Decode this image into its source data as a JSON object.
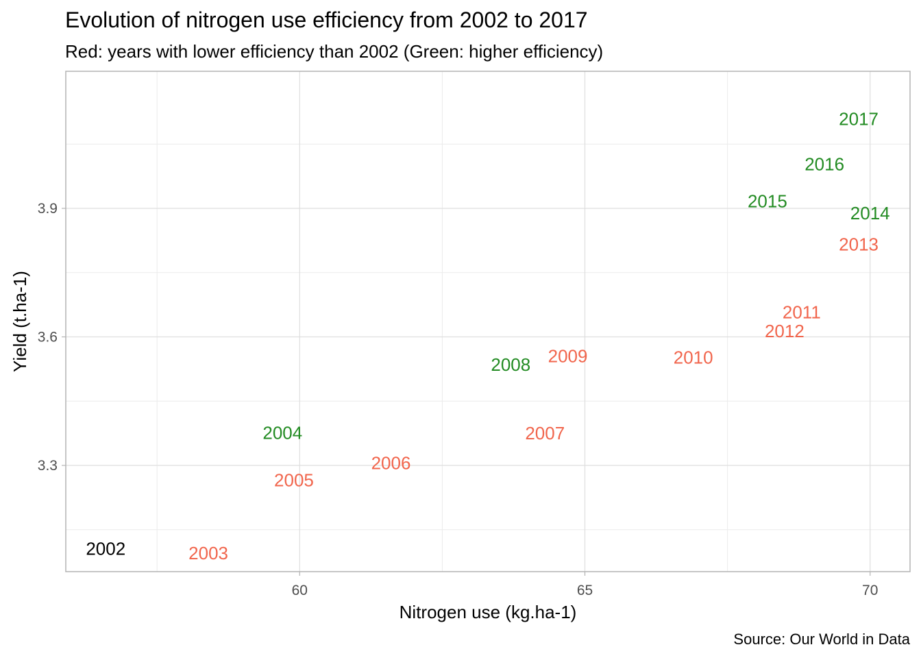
{
  "chart_data": {
    "type": "scatter",
    "title": "Evolution of nitrogen use efficiency from 2002 to 2017",
    "subtitle": "Red: years with lower efficiency than 2002 (Green: higher efficiency)",
    "xlabel": "Nitrogen use (kg.ha-1)",
    "ylabel": "Yield (t.ha-1)",
    "caption": "Source: Our World in Data",
    "xlim": [
      55.9,
      70.7
    ],
    "ylim": [
      3.052,
      4.22
    ],
    "xticks": [
      60,
      65,
      70
    ],
    "xtick_labels": [
      "60",
      "65",
      "70"
    ],
    "yticks": [
      3.3,
      3.6,
      3.9
    ],
    "ytick_labels": [
      "3.3",
      "3.6",
      "3.9"
    ],
    "grid": true,
    "colors": {
      "baseline": "#000000",
      "lower": "#f1654c",
      "higher": "#228b22"
    },
    "points": [
      {
        "label": "2002",
        "x": 56.6,
        "y": 3.106,
        "group": "baseline"
      },
      {
        "label": "2003",
        "x": 58.4,
        "y": 3.095,
        "group": "lower"
      },
      {
        "label": "2004",
        "x": 59.7,
        "y": 3.376,
        "group": "higher"
      },
      {
        "label": "2005",
        "x": 59.9,
        "y": 3.266,
        "group": "lower"
      },
      {
        "label": "2006",
        "x": 61.6,
        "y": 3.306,
        "group": "lower"
      },
      {
        "label": "2007",
        "x": 64.3,
        "y": 3.375,
        "group": "lower"
      },
      {
        "label": "2008",
        "x": 63.7,
        "y": 3.535,
        "group": "higher"
      },
      {
        "label": "2009",
        "x": 64.7,
        "y": 3.555,
        "group": "lower"
      },
      {
        "label": "2010",
        "x": 66.9,
        "y": 3.552,
        "group": "lower"
      },
      {
        "label": "2011",
        "x": 68.8,
        "y": 3.658,
        "group": "lower"
      },
      {
        "label": "2012",
        "x": 68.5,
        "y": 3.614,
        "group": "lower"
      },
      {
        "label": "2013",
        "x": 69.8,
        "y": 3.816,
        "group": "lower"
      },
      {
        "label": "2014",
        "x": 70.0,
        "y": 3.889,
        "group": "higher"
      },
      {
        "label": "2015",
        "x": 68.2,
        "y": 3.917,
        "group": "higher"
      },
      {
        "label": "2016",
        "x": 69.2,
        "y": 4.003,
        "group": "higher"
      },
      {
        "label": "2017",
        "x": 69.8,
        "y": 4.109,
        "group": "higher"
      }
    ]
  }
}
